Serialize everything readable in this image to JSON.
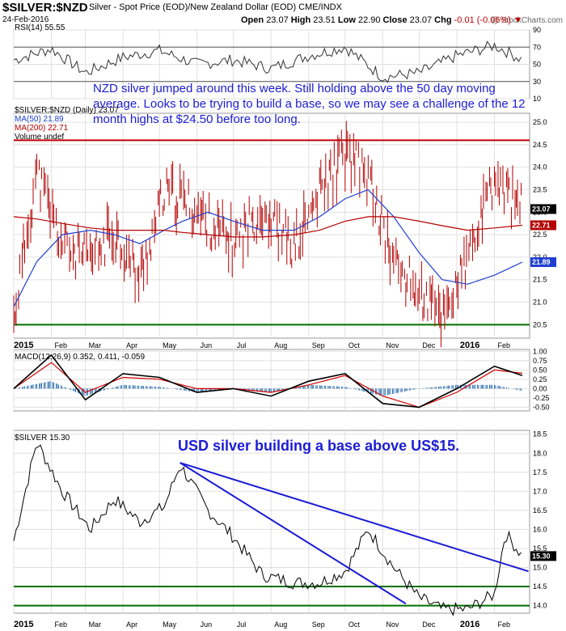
{
  "header": {
    "symbol": "$SILVER:$NZD",
    "description": "Silver - Spot Price (EOD)/New Zealand Dollar (EOD)  CME/INDX",
    "watermark": "@ StockCharts.com",
    "date": "24-Feb-2016",
    "ohlc": {
      "open_label": "Open",
      "open": "23.07",
      "high_label": "High",
      "high": "23.51",
      "low_label": "Low",
      "low": "22.90",
      "close_label": "Close",
      "close": "23.07",
      "chg_label": "Chg",
      "chg": "-0.01 (-0.06%)"
    }
  },
  "annotations": {
    "nzd_note": "NZD silver jumped around this week. Still holding above the 50 day moving average. Looks to be trying to build a base, so we may see a challenge of the 12 month highs at $24.50 before too long.",
    "usd_note": "USD silver building a base above US$15."
  },
  "colors": {
    "rsi_line": "#333333",
    "price_bars": "#b40000",
    "ma50": "#1f3fd0",
    "ma200": "#b40000",
    "macd": "#000000",
    "signal": "#d40000",
    "histogram": "#2a6fb0",
    "usd_price": "#000000",
    "trendline": "#1c1cd4",
    "resistance": "#c00000",
    "support": "#007000",
    "annotation": "#1c1cd4"
  },
  "chart_data": [
    {
      "type": "line",
      "panel": "rsi",
      "legend": "RSI(14) 55.55",
      "last_value": "55.55",
      "ylim": [
        10,
        90
      ],
      "y_ticks": [
        "90",
        "70",
        "50",
        "30",
        "10"
      ],
      "reference_lines": [
        70,
        30
      ],
      "x": [
        "2015-01",
        "2015-02",
        "2015-03",
        "2015-04",
        "2015-05",
        "2015-06",
        "2015-07",
        "2015-08",
        "2015-09",
        "2015-10",
        "2015-11",
        "2015-12",
        "2016-01",
        "2016-02",
        "2016-02-24"
      ],
      "values": [
        55,
        68,
        40,
        58,
        66,
        50,
        55,
        45,
        60,
        70,
        35,
        40,
        60,
        72,
        55.55
      ]
    },
    {
      "type": "bar",
      "panel": "price",
      "legend": "$SILVER:$NZD (Daily) 23.07",
      "ylim": [
        20.2,
        25.2
      ],
      "y_ticks": [
        "25.0",
        "24.5",
        "24.0",
        "23.5",
        "23.0",
        "22.5",
        "22.0",
        "21.5",
        "21.0",
        "20.5"
      ],
      "x_ticks": [
        "2015",
        "Feb",
        "Mar",
        "Apr",
        "May",
        "Jun",
        "Jul",
        "Aug",
        "Sep",
        "Oct",
        "Nov",
        "Dec",
        "2016",
        "Feb"
      ],
      "resistance": 24.6,
      "support": 20.5,
      "x": [
        "2015-01-01",
        "2015-01-20",
        "2015-02-10",
        "2015-03-05",
        "2015-03-25",
        "2015-04-15",
        "2015-05-05",
        "2015-05-20",
        "2015-06-10",
        "2015-07-01",
        "2015-07-25",
        "2015-08-20",
        "2015-09-10",
        "2015-10-01",
        "2015-10-20",
        "2015-11-10",
        "2015-12-01",
        "2015-12-20",
        "2016-01-10",
        "2016-02-01",
        "2016-02-24"
      ],
      "values": [
        20.6,
        23.9,
        22.3,
        21.9,
        22.6,
        21.5,
        23.4,
        23.3,
        22.8,
        22.3,
        23.1,
        22.2,
        23.4,
        24.3,
        23.8,
        21.9,
        21.2,
        20.7,
        21.9,
        23.7,
        23.07
      ],
      "series": [
        {
          "name": "MA(50) 21.89",
          "last_value": "21.89",
          "values": [
            20.9,
            21.9,
            22.5,
            22.6,
            22.5,
            22.3,
            22.6,
            22.8,
            23.0,
            22.8,
            22.6,
            22.6,
            22.9,
            23.3,
            23.5,
            22.9,
            22.1,
            21.5,
            21.4,
            21.6,
            21.89
          ]
        },
        {
          "name": "MA(200) 22.71",
          "last_value": "22.71",
          "values": [
            22.9,
            22.85,
            22.75,
            22.65,
            22.6,
            22.6,
            22.6,
            22.55,
            22.5,
            22.45,
            22.45,
            22.5,
            22.6,
            22.8,
            22.9,
            22.9,
            22.8,
            22.7,
            22.6,
            22.65,
            22.71
          ]
        }
      ],
      "last_value": "23.07",
      "extra_legend": "Volume undef"
    },
    {
      "type": "line",
      "panel": "macd",
      "legend": "MACD(12,26,9) 0.352, 0.411, -0.059",
      "ylim": [
        -0.6,
        1.05
      ],
      "y_ticks": [
        "1.00",
        "0.75",
        "0.50",
        "0.25",
        "0.00",
        "-0.25",
        "-0.50"
      ],
      "x": [
        "2015-01",
        "2015-02",
        "2015-03",
        "2015-04",
        "2015-05",
        "2015-06",
        "2015-07",
        "2015-08",
        "2015-09",
        "2015-10",
        "2015-11",
        "2015-12",
        "2016-01",
        "2016-02",
        "2016-02-24"
      ],
      "series": [
        {
          "name": "MACD",
          "last_value": "0.352",
          "values": [
            0.0,
            0.9,
            -0.3,
            0.4,
            0.3,
            -0.1,
            0.0,
            -0.2,
            0.2,
            0.4,
            -0.4,
            -0.5,
            0.0,
            0.6,
            0.352
          ]
        },
        {
          "name": "Signal",
          "last_value": "0.411",
          "values": [
            0.0,
            0.7,
            -0.1,
            0.3,
            0.25,
            0.0,
            0.0,
            -0.1,
            0.1,
            0.35,
            -0.2,
            -0.5,
            -0.1,
            0.5,
            0.411
          ]
        },
        {
          "name": "Histogram",
          "last_value": "-0.059",
          "values": [
            0.0,
            0.2,
            -0.2,
            0.1,
            0.05,
            -0.1,
            0.0,
            -0.1,
            0.1,
            0.05,
            -0.2,
            0.0,
            0.1,
            0.1,
            -0.059
          ]
        }
      ]
    },
    {
      "type": "line",
      "panel": "usd",
      "legend": "$SILVER 15.30",
      "last_value": "15.30",
      "ylim": [
        13.8,
        18.6
      ],
      "y_ticks": [
        "18.5",
        "18.0",
        "17.5",
        "17.0",
        "16.5",
        "16.0",
        "15.5",
        "15.0",
        "14.5",
        "14.0"
      ],
      "x_ticks": [
        "2015",
        "Feb",
        "Mar",
        "Apr",
        "May",
        "Jun",
        "Jul",
        "Aug",
        "Sep",
        "Oct",
        "Nov",
        "Dec",
        "2016",
        "Feb"
      ],
      "support_levels": [
        14.5,
        14.0
      ],
      "trendlines": [
        {
          "from": [
            "2015-05-18",
            17.75
          ],
          "to": [
            "2016-02-29",
            14.9
          ]
        },
        {
          "from": [
            "2015-05-18",
            17.75
          ],
          "to": [
            "2015-11-20",
            14.05
          ]
        }
      ],
      "x": [
        "2015-01-01",
        "2015-01-20",
        "2015-02-10",
        "2015-03-05",
        "2015-03-25",
        "2015-04-15",
        "2015-05-05",
        "2015-05-18",
        "2015-06-10",
        "2015-07-01",
        "2015-07-25",
        "2015-08-20",
        "2015-09-10",
        "2015-10-01",
        "2015-10-20",
        "2015-11-10",
        "2015-12-01",
        "2015-12-20",
        "2016-01-10",
        "2016-02-01",
        "2016-02-10",
        "2016-02-24"
      ],
      "values": [
        15.7,
        18.3,
        17.0,
        16.0,
        16.8,
        16.2,
        16.6,
        17.7,
        16.5,
        15.8,
        14.8,
        14.6,
        14.6,
        14.9,
        16.0,
        15.0,
        14.2,
        13.9,
        13.9,
        14.3,
        15.9,
        15.3
      ]
    }
  ]
}
